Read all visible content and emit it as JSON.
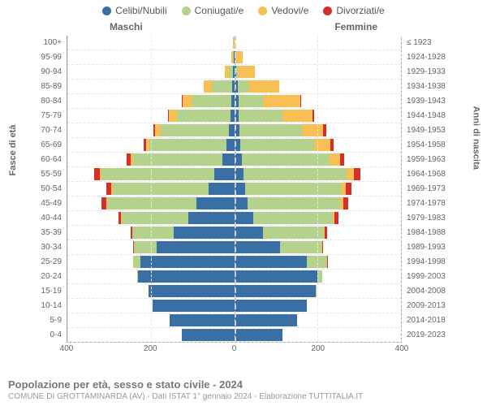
{
  "type": "population_pyramid",
  "colors": {
    "celibi": "#3a6fa6",
    "coniugati": "#b4d28c",
    "vedovi": "#f8c054",
    "divorziati": "#d42f2a",
    "background": "#ffffff",
    "grid": "#e5e5e5",
    "axis": "#999999",
    "text": "#666666"
  },
  "legend": [
    {
      "key": "celibi",
      "label": "Celibi/Nubili"
    },
    {
      "key": "coniugati",
      "label": "Coniugati/e"
    },
    {
      "key": "vedovi",
      "label": "Vedovi/e"
    },
    {
      "key": "divorziati",
      "label": "Divorziati/e"
    }
  ],
  "header_male": "Maschi",
  "header_female": "Femmine",
  "axis_left_label": "Fasce di età",
  "axis_right_label": "Anni di nascita",
  "x_ticks": [
    "400",
    "200",
    "0",
    "200",
    "400"
  ],
  "x_max": 400,
  "title": "Popolazione per età, sesso e stato civile - 2024",
  "subtitle": "COMUNE DI GROTTAMINARDA (AV) - Dati ISTAT 1° gennaio 2024 - Elaborazione TUTTITALIA.IT",
  "fontsize_legend": 12,
  "fontsize_labels": 10,
  "fontsize_title": 13,
  "rows": [
    {
      "age": "100+",
      "birth": "≤ 1923",
      "m": {
        "celibi": 0,
        "coniugati": 0,
        "vedovi": 2,
        "divorziati": 0
      },
      "f": {
        "celibi": 0,
        "coniugati": 0,
        "vedovi": 2,
        "divorziati": 0
      }
    },
    {
      "age": "95-99",
      "birth": "1924-1928",
      "m": {
        "celibi": 1,
        "coniugati": 2,
        "vedovi": 3,
        "divorziati": 0
      },
      "f": {
        "celibi": 2,
        "coniugati": 1,
        "vedovi": 18,
        "divorziati": 0
      }
    },
    {
      "age": "90-94",
      "birth": "1929-1933",
      "m": {
        "celibi": 2,
        "coniugati": 10,
        "vedovi": 10,
        "divorziati": 0
      },
      "f": {
        "celibi": 4,
        "coniugati": 4,
        "vedovi": 42,
        "divorziati": 0
      }
    },
    {
      "age": "85-89",
      "birth": "1934-1938",
      "m": {
        "celibi": 4,
        "coniugati": 50,
        "vedovi": 20,
        "divorziati": 0
      },
      "f": {
        "celibi": 8,
        "coniugati": 28,
        "vedovi": 72,
        "divorziati": 0
      }
    },
    {
      "age": "80-84",
      "birth": "1939-1943",
      "m": {
        "celibi": 6,
        "coniugati": 95,
        "vedovi": 22,
        "divorziati": 2
      },
      "f": {
        "celibi": 10,
        "coniugati": 60,
        "vedovi": 88,
        "divorziati": 2
      }
    },
    {
      "age": "75-79",
      "birth": "1944-1948",
      "m": {
        "celibi": 8,
        "coniugati": 130,
        "vedovi": 18,
        "divorziati": 3
      },
      "f": {
        "celibi": 10,
        "coniugati": 105,
        "vedovi": 72,
        "divorziati": 4
      }
    },
    {
      "age": "70-74",
      "birth": "1949-1953",
      "m": {
        "celibi": 12,
        "coniugati": 165,
        "vedovi": 12,
        "divorziati": 5
      },
      "f": {
        "celibi": 12,
        "coniugati": 150,
        "vedovi": 52,
        "divorziati": 6
      }
    },
    {
      "age": "65-69",
      "birth": "1954-1958",
      "m": {
        "celibi": 18,
        "coniugati": 185,
        "vedovi": 8,
        "divorziati": 7
      },
      "f": {
        "celibi": 14,
        "coniugati": 178,
        "vedovi": 38,
        "divorziati": 8
      }
    },
    {
      "age": "60-64",
      "birth": "1959-1963",
      "m": {
        "celibi": 28,
        "coniugati": 215,
        "vedovi": 6,
        "divorziati": 9
      },
      "f": {
        "celibi": 18,
        "coniugati": 210,
        "vedovi": 26,
        "divorziati": 10
      }
    },
    {
      "age": "55-59",
      "birth": "1964-1968",
      "m": {
        "celibi": 48,
        "coniugati": 270,
        "vedovi": 4,
        "divorziati": 14
      },
      "f": {
        "celibi": 22,
        "coniugati": 248,
        "vedovi": 18,
        "divorziati": 14
      }
    },
    {
      "age": "50-54",
      "birth": "1969-1973",
      "m": {
        "celibi": 62,
        "coniugati": 230,
        "vedovi": 3,
        "divorziati": 12
      },
      "f": {
        "celibi": 26,
        "coniugati": 230,
        "vedovi": 12,
        "divorziati": 14
      }
    },
    {
      "age": "45-49",
      "birth": "1974-1978",
      "m": {
        "celibi": 90,
        "coniugati": 215,
        "vedovi": 2,
        "divorziati": 11
      },
      "f": {
        "celibi": 32,
        "coniugati": 222,
        "vedovi": 8,
        "divorziati": 12
      }
    },
    {
      "age": "40-44",
      "birth": "1979-1983",
      "m": {
        "celibi": 110,
        "coniugati": 160,
        "vedovi": 1,
        "divorziati": 7
      },
      "f": {
        "celibi": 46,
        "coniugati": 190,
        "vedovi": 4,
        "divorziati": 10
      }
    },
    {
      "age": "35-39",
      "birth": "1984-1988",
      "m": {
        "celibi": 145,
        "coniugati": 100,
        "vedovi": 0,
        "divorziati": 4
      },
      "f": {
        "celibi": 70,
        "coniugati": 145,
        "vedovi": 2,
        "divorziati": 6
      }
    },
    {
      "age": "30-34",
      "birth": "1989-1993",
      "m": {
        "celibi": 185,
        "coniugati": 55,
        "vedovi": 0,
        "divorziati": 2
      },
      "f": {
        "celibi": 110,
        "coniugati": 100,
        "vedovi": 1,
        "divorziati": 3
      }
    },
    {
      "age": "25-29",
      "birth": "1994-1998",
      "m": {
        "celibi": 225,
        "coniugati": 18,
        "vedovi": 0,
        "divorziati": 0
      },
      "f": {
        "celibi": 175,
        "coniugati": 48,
        "vedovi": 0,
        "divorziati": 1
      }
    },
    {
      "age": "20-24",
      "birth": "1999-2003",
      "m": {
        "celibi": 230,
        "coniugati": 3,
        "vedovi": 0,
        "divorziati": 0
      },
      "f": {
        "celibi": 200,
        "coniugati": 12,
        "vedovi": 0,
        "divorziati": 0
      }
    },
    {
      "age": "15-19",
      "birth": "2004-2008",
      "m": {
        "celibi": 205,
        "coniugati": 0,
        "vedovi": 0,
        "divorziati": 0
      },
      "f": {
        "celibi": 195,
        "coniugati": 1,
        "vedovi": 0,
        "divorziati": 0
      }
    },
    {
      "age": "10-14",
      "birth": "2009-2013",
      "m": {
        "celibi": 195,
        "coniugati": 0,
        "vedovi": 0,
        "divorziati": 0
      },
      "f": {
        "celibi": 175,
        "coniugati": 0,
        "vedovi": 0,
        "divorziati": 0
      }
    },
    {
      "age": "5-9",
      "birth": "2014-2018",
      "m": {
        "celibi": 155,
        "coniugati": 0,
        "vedovi": 0,
        "divorziati": 0
      },
      "f": {
        "celibi": 150,
        "coniugati": 0,
        "vedovi": 0,
        "divorziati": 0
      }
    },
    {
      "age": "0-4",
      "birth": "2019-2023",
      "m": {
        "celibi": 125,
        "coniugati": 0,
        "vedovi": 0,
        "divorziati": 0
      },
      "f": {
        "celibi": 115,
        "coniugati": 0,
        "vedovi": 0,
        "divorziati": 0
      }
    }
  ]
}
